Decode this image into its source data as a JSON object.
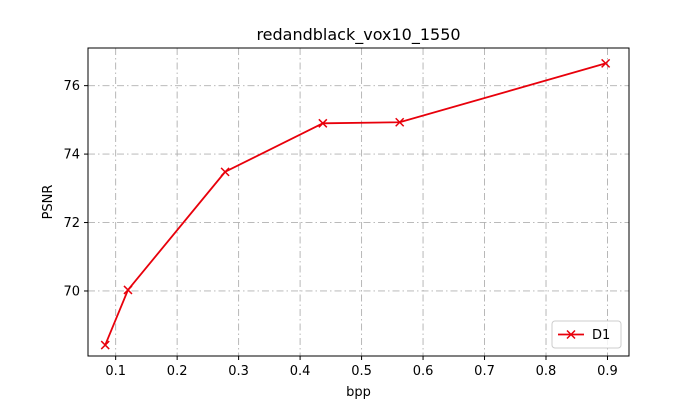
{
  "chart_data": {
    "type": "line",
    "title": "redandblack_vox10_1550",
    "xlabel": "bpp",
    "ylabel": "PSNR",
    "xlim": [
      0.055,
      0.935
    ],
    "ylim": [
      68.1,
      77.1
    ],
    "xticks": [
      0.1,
      0.2,
      0.3,
      0.4,
      0.5,
      0.6,
      0.7,
      0.8,
      0.9
    ],
    "xtick_labels": [
      "0.1",
      "0.2",
      "0.3",
      "0.4",
      "0.5",
      "0.6",
      "0.7",
      "0.8",
      "0.9"
    ],
    "yticks": [
      70,
      72,
      74,
      76
    ],
    "ytick_labels": [
      "70",
      "72",
      "74",
      "76"
    ],
    "grid": true,
    "grid_style": "dash-dot",
    "legend_position": "lower-right",
    "series": [
      {
        "name": "D1",
        "color": "#e8000b",
        "marker": "x",
        "x": [
          0.083,
          0.12,
          0.278,
          0.437,
          0.562,
          0.897
        ],
        "y": [
          68.42,
          70.03,
          73.48,
          74.9,
          74.93,
          76.65
        ]
      }
    ]
  }
}
